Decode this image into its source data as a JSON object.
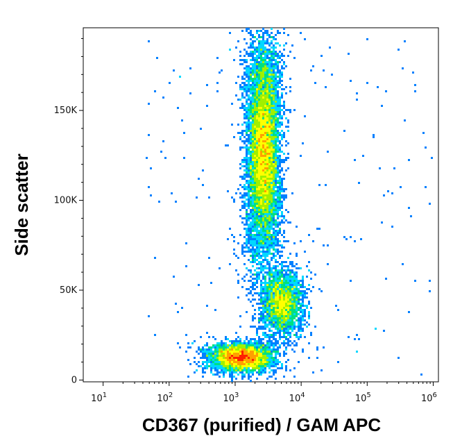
{
  "chart_data": {
    "type": "scatter",
    "style": "density-dot-plot",
    "xlabel": "CD367 (purified) / GAM APC",
    "ylabel": "Side scatter",
    "x_scale": "log",
    "xlim": [
      5,
      1200000
    ],
    "ylim": [
      -1000,
      196000
    ],
    "x_ticks": [
      {
        "value": 10,
        "base": "10",
        "exp": "1"
      },
      {
        "value": 100,
        "base": "10",
        "exp": "2"
      },
      {
        "value": 1000,
        "base": "10",
        "exp": "3"
      },
      {
        "value": 10000,
        "base": "10",
        "exp": "4"
      },
      {
        "value": 100000,
        "base": "10",
        "exp": "5"
      },
      {
        "value": 1000000,
        "base": "10",
        "exp": "6"
      }
    ],
    "y_ticks": [
      {
        "value": 0,
        "label": "0"
      },
      {
        "value": 50000,
        "label": "50K"
      },
      {
        "value": 100000,
        "label": "100K"
      },
      {
        "value": 150000,
        "label": "150K"
      }
    ],
    "populations": [
      {
        "name": "",
        "x_center": 2700,
        "y_center": 128000,
        "x_spread_log": 0.11,
        "y_spread": 30000,
        "count": 9000,
        "peak": "red"
      },
      {
        "name": "",
        "x_center": 1250,
        "y_center": 12500,
        "x_spread_log": 0.2,
        "y_spread": 3800,
        "count": 4200,
        "peak": "red"
      },
      {
        "name": "",
        "x_center": 5200,
        "y_center": 43000,
        "x_spread_log": 0.14,
        "y_spread": 9000,
        "count": 2600,
        "peak": "green"
      }
    ],
    "density_colors": [
      "#0000ff",
      "#0080ff",
      "#00d8ff",
      "#00e080",
      "#a0f000",
      "#ffff00",
      "#ffa000",
      "#ff2000"
    ],
    "grid": false,
    "legend": "none"
  }
}
